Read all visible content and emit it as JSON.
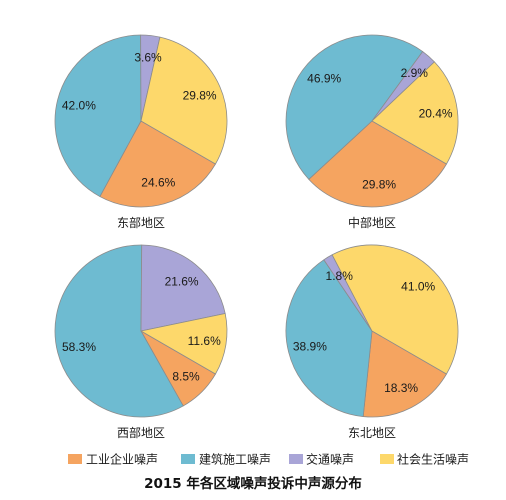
{
  "chart_data": {
    "type": "pie",
    "title": "2015 年各区域噪声投诉中声源分布",
    "categories": [
      "工业企业噪声",
      "建筑施工噪声",
      "交通噪声",
      "社会生活噪声"
    ],
    "colors": [
      "#F5A460",
      "#6EBBD1",
      "#A9A5D7",
      "#FDD86B"
    ],
    "legend": "bottom",
    "series": [
      {
        "name": "东部地区",
        "values": [
          24.6,
          42.0,
          3.6,
          29.8
        ],
        "data_labels": [
          "24.6%",
          "42.0%",
          "3.6%",
          "29.8%"
        ]
      },
      {
        "name": "中部地区",
        "values": [
          29.8,
          46.9,
          2.9,
          20.4
        ],
        "data_labels": [
          "29.8%",
          "46.9%",
          "2.9%",
          "20.4%"
        ]
      },
      {
        "name": "西部地区",
        "values": [
          8.5,
          58.3,
          21.6,
          11.6
        ],
        "data_labels": [
          "8.5%",
          "58.3%",
          "21.6%",
          "11.6%"
        ]
      },
      {
        "name": "东北地区",
        "values": [
          18.3,
          38.9,
          1.8,
          41.0
        ],
        "data_labels": [
          "18.3%",
          "38.9%",
          "1.8%",
          "41.0%"
        ]
      }
    ]
  }
}
